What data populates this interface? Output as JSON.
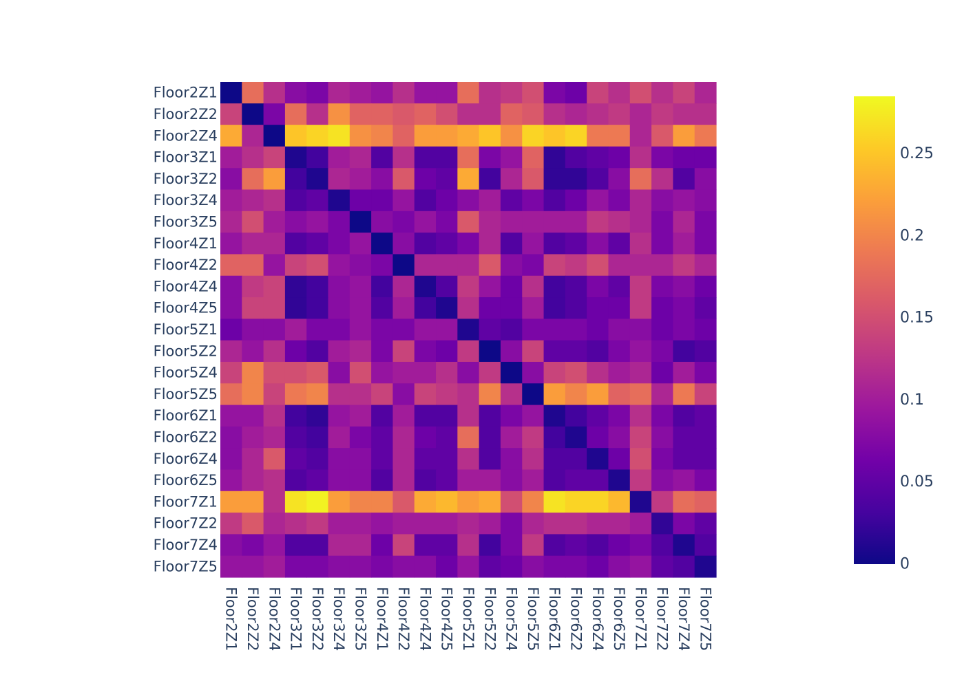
{
  "chart_data": {
    "type": "heatmap",
    "title": "",
    "xlabel": "",
    "ylabel": "",
    "colorscale": "plasma",
    "zmin": 0,
    "zmax": 0.285,
    "colorbar_ticks": [
      {
        "value": 0,
        "label": "0"
      },
      {
        "value": 0.05,
        "label": "0.05"
      },
      {
        "value": 0.1,
        "label": "0.1"
      },
      {
        "value": 0.15,
        "label": "0.15"
      },
      {
        "value": 0.2,
        "label": "0.2"
      },
      {
        "value": 0.25,
        "label": "0.25"
      }
    ],
    "x": [
      "Floor2Z1",
      "Floor2Z2",
      "Floor2Z4",
      "Floor3Z1",
      "Floor3Z2",
      "Floor3Z4",
      "Floor3Z5",
      "Floor4Z1",
      "Floor4Z2",
      "Floor4Z4",
      "Floor4Z5",
      "Floor5Z1",
      "Floor5Z2",
      "Floor5Z4",
      "Floor5Z5",
      "Floor6Z1",
      "Floor6Z2",
      "Floor6Z4",
      "Floor6Z5",
      "Floor7Z1",
      "Floor7Z2",
      "Floor7Z4",
      "Floor7Z5"
    ],
    "y": [
      "Floor2Z1",
      "Floor2Z2",
      "Floor2Z4",
      "Floor3Z1",
      "Floor3Z2",
      "Floor3Z4",
      "Floor3Z5",
      "Floor4Z1",
      "Floor4Z2",
      "Floor4Z4",
      "Floor4Z5",
      "Floor5Z1",
      "Floor5Z2",
      "Floor5Z4",
      "Floor5Z5",
      "Floor6Z1",
      "Floor6Z2",
      "Floor6Z4",
      "Floor6Z5",
      "Floor7Z1",
      "Floor7Z2",
      "Floor7Z4",
      "Floor7Z5"
    ],
    "z": [
      [
        0.0,
        0.18,
        0.12,
        0.08,
        0.07,
        0.11,
        0.1,
        0.09,
        0.12,
        0.09,
        0.09,
        0.18,
        0.12,
        0.13,
        0.15,
        0.07,
        0.06,
        0.14,
        0.12,
        0.15,
        0.12,
        0.14,
        0.11
      ],
      [
        0.14,
        0.0,
        0.07,
        0.18,
        0.12,
        0.21,
        0.17,
        0.17,
        0.16,
        0.17,
        0.15,
        0.12,
        0.12,
        0.17,
        0.16,
        0.12,
        0.11,
        0.12,
        0.13,
        0.11,
        0.13,
        0.12,
        0.12
      ],
      [
        0.23,
        0.11,
        0.0,
        0.25,
        0.26,
        0.27,
        0.21,
        0.2,
        0.17,
        0.22,
        0.22,
        0.23,
        0.25,
        0.21,
        0.26,
        0.25,
        0.26,
        0.19,
        0.19,
        0.11,
        0.16,
        0.22,
        0.19
      ],
      [
        0.1,
        0.12,
        0.14,
        0.01,
        0.03,
        0.1,
        0.11,
        0.04,
        0.12,
        0.04,
        0.04,
        0.18,
        0.07,
        0.09,
        0.17,
        0.02,
        0.04,
        0.05,
        0.06,
        0.12,
        0.07,
        0.06,
        0.06
      ],
      [
        0.08,
        0.18,
        0.22,
        0.03,
        0.01,
        0.11,
        0.1,
        0.08,
        0.16,
        0.06,
        0.05,
        0.23,
        0.03,
        0.11,
        0.16,
        0.02,
        0.02,
        0.04,
        0.08,
        0.18,
        0.12,
        0.04,
        0.08
      ],
      [
        0.1,
        0.11,
        0.12,
        0.04,
        0.05,
        0.01,
        0.06,
        0.06,
        0.09,
        0.04,
        0.06,
        0.08,
        0.1,
        0.05,
        0.07,
        0.04,
        0.06,
        0.09,
        0.07,
        0.11,
        0.08,
        0.09,
        0.08
      ],
      [
        0.11,
        0.15,
        0.1,
        0.08,
        0.09,
        0.07,
        0.0,
        0.08,
        0.07,
        0.09,
        0.07,
        0.16,
        0.11,
        0.1,
        0.1,
        0.1,
        0.1,
        0.13,
        0.12,
        0.11,
        0.07,
        0.11,
        0.07
      ],
      [
        0.09,
        0.11,
        0.11,
        0.04,
        0.05,
        0.07,
        0.09,
        0.0,
        0.08,
        0.04,
        0.05,
        0.07,
        0.11,
        0.04,
        0.09,
        0.04,
        0.05,
        0.08,
        0.05,
        0.12,
        0.07,
        0.1,
        0.07
      ],
      [
        0.17,
        0.17,
        0.09,
        0.14,
        0.15,
        0.09,
        0.08,
        0.07,
        0.0,
        0.11,
        0.11,
        0.11,
        0.16,
        0.08,
        0.07,
        0.14,
        0.13,
        0.15,
        0.11,
        0.11,
        0.11,
        0.13,
        0.11
      ],
      [
        0.08,
        0.13,
        0.14,
        0.02,
        0.03,
        0.08,
        0.09,
        0.03,
        0.11,
        0.01,
        0.04,
        0.13,
        0.09,
        0.06,
        0.12,
        0.03,
        0.04,
        0.07,
        0.05,
        0.13,
        0.07,
        0.08,
        0.06
      ],
      [
        0.08,
        0.14,
        0.14,
        0.02,
        0.03,
        0.08,
        0.09,
        0.04,
        0.1,
        0.03,
        0.01,
        0.12,
        0.06,
        0.06,
        0.1,
        0.03,
        0.04,
        0.06,
        0.06,
        0.13,
        0.06,
        0.07,
        0.05
      ],
      [
        0.06,
        0.08,
        0.08,
        0.1,
        0.07,
        0.07,
        0.09,
        0.07,
        0.07,
        0.09,
        0.09,
        0.01,
        0.05,
        0.04,
        0.07,
        0.07,
        0.07,
        0.06,
        0.08,
        0.08,
        0.06,
        0.07,
        0.06
      ],
      [
        0.11,
        0.09,
        0.12,
        0.06,
        0.04,
        0.1,
        0.11,
        0.07,
        0.14,
        0.07,
        0.06,
        0.13,
        0.0,
        0.08,
        0.14,
        0.05,
        0.05,
        0.04,
        0.07,
        0.09,
        0.07,
        0.03,
        0.04
      ],
      [
        0.14,
        0.2,
        0.15,
        0.15,
        0.16,
        0.08,
        0.15,
        0.09,
        0.1,
        0.1,
        0.12,
        0.08,
        0.13,
        0.0,
        0.08,
        0.14,
        0.15,
        0.12,
        0.1,
        0.11,
        0.06,
        0.1,
        0.07
      ],
      [
        0.18,
        0.2,
        0.14,
        0.19,
        0.2,
        0.12,
        0.12,
        0.14,
        0.08,
        0.14,
        0.13,
        0.12,
        0.2,
        0.12,
        0.0,
        0.22,
        0.2,
        0.22,
        0.17,
        0.18,
        0.11,
        0.19,
        0.14
      ],
      [
        0.09,
        0.09,
        0.12,
        0.03,
        0.02,
        0.09,
        0.1,
        0.04,
        0.1,
        0.04,
        0.04,
        0.12,
        0.04,
        0.07,
        0.09,
        0.01,
        0.03,
        0.05,
        0.07,
        0.12,
        0.07,
        0.04,
        0.05
      ],
      [
        0.08,
        0.1,
        0.11,
        0.04,
        0.03,
        0.1,
        0.07,
        0.05,
        0.11,
        0.06,
        0.05,
        0.18,
        0.04,
        0.1,
        0.13,
        0.03,
        0.01,
        0.06,
        0.08,
        0.14,
        0.08,
        0.05,
        0.05
      ],
      [
        0.08,
        0.11,
        0.16,
        0.05,
        0.04,
        0.08,
        0.08,
        0.05,
        0.11,
        0.05,
        0.05,
        0.12,
        0.04,
        0.08,
        0.12,
        0.04,
        0.04,
        0.01,
        0.06,
        0.15,
        0.07,
        0.05,
        0.05
      ],
      [
        0.09,
        0.11,
        0.12,
        0.04,
        0.05,
        0.08,
        0.08,
        0.04,
        0.11,
        0.04,
        0.05,
        0.1,
        0.1,
        0.08,
        0.1,
        0.04,
        0.05,
        0.05,
        0.01,
        0.13,
        0.08,
        0.09,
        0.07
      ],
      [
        0.22,
        0.22,
        0.12,
        0.27,
        0.28,
        0.22,
        0.2,
        0.2,
        0.16,
        0.23,
        0.24,
        0.22,
        0.23,
        0.15,
        0.2,
        0.27,
        0.26,
        0.26,
        0.24,
        0.01,
        0.13,
        0.18,
        0.17
      ],
      [
        0.13,
        0.16,
        0.11,
        0.12,
        0.13,
        0.1,
        0.1,
        0.09,
        0.1,
        0.1,
        0.1,
        0.11,
        0.1,
        0.07,
        0.11,
        0.12,
        0.12,
        0.11,
        0.11,
        0.1,
        0.02,
        0.07,
        0.05
      ],
      [
        0.08,
        0.07,
        0.09,
        0.04,
        0.04,
        0.11,
        0.11,
        0.06,
        0.14,
        0.05,
        0.05,
        0.12,
        0.03,
        0.07,
        0.13,
        0.04,
        0.05,
        0.04,
        0.06,
        0.07,
        0.04,
        0.01,
        0.04
      ],
      [
        0.09,
        0.09,
        0.1,
        0.07,
        0.07,
        0.08,
        0.08,
        0.07,
        0.08,
        0.08,
        0.06,
        0.09,
        0.05,
        0.06,
        0.08,
        0.07,
        0.07,
        0.06,
        0.08,
        0.09,
        0.05,
        0.04,
        0.01
      ]
    ]
  }
}
